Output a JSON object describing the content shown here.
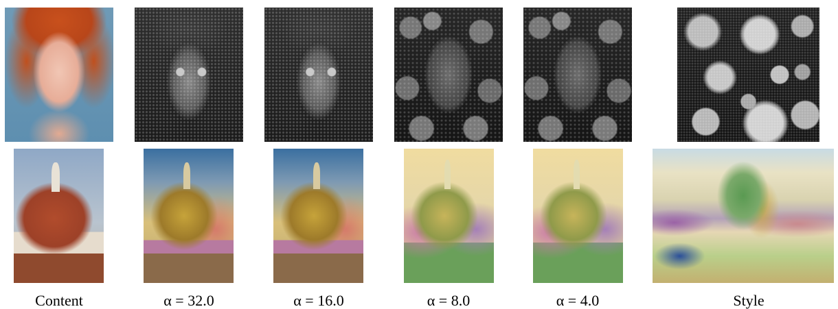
{
  "figure": {
    "captions": {
      "content": "Content",
      "alpha_1": "α = 32.0",
      "alpha_2": "α = 16.0",
      "alpha_3": "α = 8.0",
      "alpha_4": "α = 4.0",
      "style": "Style"
    },
    "rows": [
      {
        "content": "portrait of red-haired woman",
        "style": "pollen grains (greyscale micrograph)"
      },
      {
        "content": "Florence cathedral dome",
        "style": "impressionist watercolor landscape"
      }
    ]
  }
}
